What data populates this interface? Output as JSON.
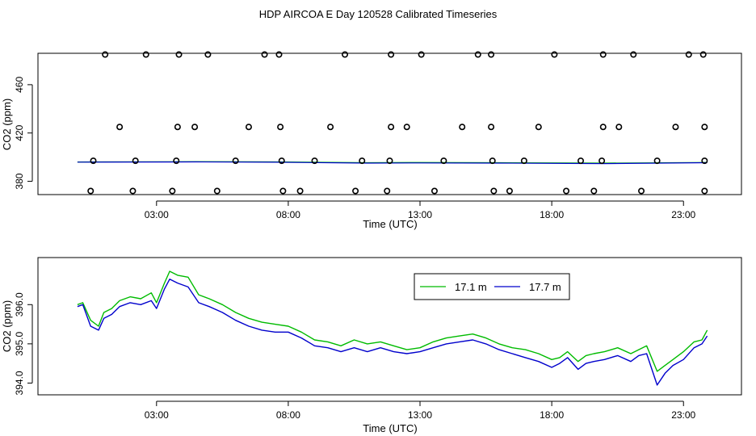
{
  "title": "HDP AIRCOA E  Day 120528  Calibrated Timeseries",
  "colors": {
    "green": "#00bb00",
    "blue": "#0000cc",
    "axis": "#000000"
  },
  "chart_data": [
    {
      "type": "scatter",
      "xlabel": "Time (UTC)",
      "ylabel": "CO2 (ppm)",
      "xlim": [
        -1.5,
        25.2
      ],
      "ylim": [
        369,
        486
      ],
      "x_ticks": [
        3,
        8,
        13,
        18,
        23
      ],
      "x_tick_labels": [
        "03:00",
        "08:00",
        "13:00",
        "18:00",
        "23:00"
      ],
      "y_ticks": [
        380,
        420,
        460
      ],
      "y_tick_labels": [
        "380",
        "420",
        "460"
      ],
      "points_x": [
        1.05,
        2.6,
        3.85,
        4.95,
        7.1,
        7.65,
        10.15,
        11.9,
        13.05,
        15.2,
        15.7,
        18.1,
        19.95,
        21.1,
        23.2,
        23.75,
        1.6,
        3.8,
        4.45,
        6.5,
        7.7,
        9.6,
        11.9,
        12.5,
        14.6,
        15.7,
        17.5,
        19.95,
        20.55,
        22.7,
        23.8,
        0.6,
        2.2,
        3.75,
        6.0,
        7.75,
        9.0,
        10.8,
        11.85,
        13.9,
        15.75,
        16.95,
        19.1,
        19.9,
        22.0,
        23.8,
        0.5,
        2.1,
        3.6,
        5.3,
        7.8,
        8.45,
        10.55,
        11.75,
        13.55,
        15.8,
        16.4,
        18.55,
        19.6,
        21.4,
        23.8
      ],
      "points_y": [
        485,
        485,
        485,
        485,
        485,
        485,
        485,
        485,
        485,
        485,
        485,
        485,
        485,
        485,
        485,
        485,
        425,
        425,
        425,
        425,
        425,
        425,
        425,
        425,
        425,
        425,
        425,
        425,
        425,
        425,
        425,
        397,
        397,
        397,
        397,
        397,
        397,
        397,
        397,
        397,
        397,
        397,
        397,
        397,
        397,
        397,
        372,
        372,
        372,
        372,
        372,
        372,
        372,
        372,
        372,
        372,
        372,
        372,
        372,
        372,
        372
      ],
      "series": [
        {
          "name": "17.1 m",
          "x": [
            0.0,
            3.5,
            4.5,
            7.5,
            11.0,
            13.0,
            16.0,
            20.0,
            23.9
          ],
          "values": [
            396.0,
            396.2,
            396.3,
            396.1,
            395.4,
            395.6,
            395.4,
            395.1,
            395.6
          ]
        },
        {
          "name": "17.7 m",
          "x": [
            0.0,
            3.5,
            4.5,
            7.5,
            11.0,
            13.0,
            16.0,
            20.0,
            23.9
          ],
          "values": [
            395.9,
            396.0,
            396.1,
            395.8,
            395.1,
            395.2,
            395.1,
            394.7,
            395.4
          ]
        }
      ]
    },
    {
      "type": "line",
      "xlabel": "Time (UTC)",
      "ylabel": "CO2 (ppm)",
      "xlim": [
        -1.5,
        25.2
      ],
      "ylim": [
        393.7,
        397.2
      ],
      "x_ticks": [
        3,
        8,
        13,
        18,
        23
      ],
      "x_tick_labels": [
        "03:00",
        "08:00",
        "13:00",
        "18:00",
        "23:00"
      ],
      "y_ticks": [
        394.0,
        395.0,
        396.0
      ],
      "y_tick_labels": [
        "394.0",
        "395.0",
        "396.0"
      ],
      "legend": {
        "position": "top-center",
        "entries": [
          "17.1 m",
          "17.7 m"
        ]
      },
      "series": [
        {
          "name": "17.1 m",
          "color": "green",
          "x": [
            0.0,
            0.2,
            0.5,
            0.8,
            1.0,
            1.3,
            1.6,
            2.0,
            2.4,
            2.8,
            3.0,
            3.3,
            3.5,
            3.8,
            4.2,
            4.6,
            5.0,
            5.5,
            6.0,
            6.5,
            7.0,
            7.5,
            8.0,
            8.5,
            9.0,
            9.5,
            10.0,
            10.5,
            11.0,
            11.5,
            12.0,
            12.5,
            13.0,
            13.5,
            14.0,
            14.5,
            15.0,
            15.5,
            16.0,
            16.5,
            17.0,
            17.5,
            18.0,
            18.3,
            18.6,
            19.0,
            19.3,
            19.6,
            20.0,
            20.5,
            21.0,
            21.3,
            21.6,
            22.0,
            22.3,
            22.6,
            23.0,
            23.4,
            23.7,
            23.9
          ],
          "values": [
            396.0,
            396.05,
            395.6,
            395.45,
            395.8,
            395.9,
            396.1,
            396.2,
            396.15,
            396.3,
            396.05,
            396.55,
            396.85,
            396.75,
            396.7,
            396.25,
            396.15,
            396.0,
            395.8,
            395.65,
            395.55,
            395.5,
            395.45,
            395.3,
            395.1,
            395.05,
            394.95,
            395.1,
            395.0,
            395.05,
            394.95,
            394.85,
            394.9,
            395.05,
            395.15,
            395.2,
            395.25,
            395.15,
            395.0,
            394.9,
            394.85,
            394.75,
            394.6,
            394.65,
            394.8,
            394.55,
            394.7,
            394.75,
            394.8,
            394.9,
            394.75,
            394.85,
            394.95,
            394.3,
            394.45,
            394.6,
            394.8,
            395.05,
            395.1,
            395.35
          ]
        },
        {
          "name": "17.7 m",
          "color": "blue",
          "x": [
            0.0,
            0.2,
            0.5,
            0.8,
            1.0,
            1.3,
            1.6,
            2.0,
            2.4,
            2.8,
            3.0,
            3.3,
            3.5,
            3.8,
            4.2,
            4.6,
            5.0,
            5.5,
            6.0,
            6.5,
            7.0,
            7.5,
            8.0,
            8.5,
            9.0,
            9.5,
            10.0,
            10.5,
            11.0,
            11.5,
            12.0,
            12.5,
            13.0,
            13.5,
            14.0,
            14.5,
            15.0,
            15.5,
            16.0,
            16.5,
            17.0,
            17.5,
            18.0,
            18.3,
            18.6,
            19.0,
            19.3,
            19.6,
            20.0,
            20.5,
            21.0,
            21.3,
            21.6,
            22.0,
            22.3,
            22.6,
            23.0,
            23.4,
            23.7,
            23.9
          ],
          "values": [
            395.95,
            396.0,
            395.45,
            395.35,
            395.65,
            395.75,
            395.95,
            396.05,
            396.0,
            396.1,
            395.9,
            396.4,
            396.65,
            396.55,
            396.45,
            396.05,
            395.95,
            395.8,
            395.6,
            395.45,
            395.35,
            395.3,
            395.3,
            395.15,
            394.95,
            394.9,
            394.8,
            394.9,
            394.8,
            394.9,
            394.8,
            394.75,
            394.8,
            394.9,
            395.0,
            395.05,
            395.1,
            395.0,
            394.85,
            394.75,
            394.65,
            394.55,
            394.4,
            394.5,
            394.65,
            394.35,
            394.5,
            394.55,
            394.6,
            394.7,
            394.55,
            394.7,
            394.75,
            393.95,
            394.25,
            394.45,
            394.6,
            394.9,
            395.0,
            395.2
          ]
        }
      ]
    }
  ]
}
